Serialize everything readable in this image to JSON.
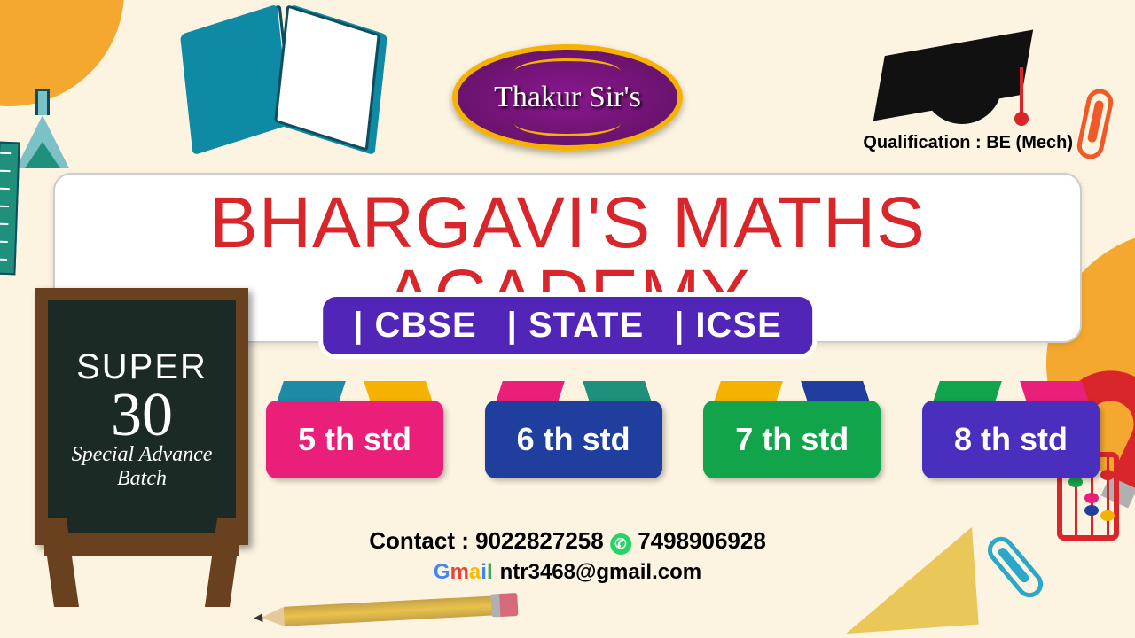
{
  "logo_name": "Thakur Sir's",
  "qualification_label": "Qualification : BE (Mech)",
  "main_title": "BHARGAVI'S MATHS ACADEMY",
  "title_color": "#d8262a",
  "boards": {
    "items": [
      "| CBSE",
      "| STATE",
      "| ICSE"
    ],
    "bg": "#5125b7"
  },
  "standards": [
    {
      "label": "5 th std",
      "body": "#ea1f7a",
      "flap_l": "#1e8aa5",
      "flap_r": "#f6b200"
    },
    {
      "label": "6 th std",
      "body": "#1f3e9e",
      "flap_l": "#ea1f7a",
      "flap_r": "#1e907c"
    },
    {
      "label": "7 th std",
      "body": "#12a44a",
      "flap_l": "#f6b200",
      "flap_r": "#1f3e9e"
    },
    {
      "label": "8 th std",
      "body": "#4a2fbf",
      "flap_l": "#12a44a",
      "flap_r": "#ea1f7a"
    }
  ],
  "chalkboard": {
    "line1": "SUPER",
    "line2": "30",
    "line3": "Special Advance",
    "line4": "Batch"
  },
  "contact": {
    "label": "Contact :",
    "phone1": "9022827258",
    "phone2": "7498906928",
    "email": "ntr3468@gmail.com"
  },
  "colors": {
    "bg": "#fcf3e0",
    "blob": "#f5a82f",
    "oval": "#8a178f",
    "oval_border": "#f6b200",
    "chalk_frame": "#6a411f",
    "chalk_board": "#1b2a24"
  }
}
